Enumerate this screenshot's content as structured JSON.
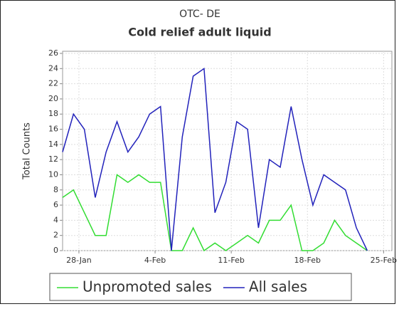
{
  "chart_data": {
    "type": "line",
    "title": "OTC- DE",
    "subtitle": "Cold relief adult liquid",
    "y_label": "Total Counts",
    "x": [
      0,
      1,
      2,
      3,
      4,
      5,
      6,
      7,
      8,
      9,
      10,
      11,
      12,
      13,
      14,
      15,
      16,
      17,
      18,
      19,
      20,
      21,
      22,
      23,
      24,
      25,
      26,
      27,
      28
    ],
    "series": [
      {
        "name": "Unpromoted sales",
        "color": "#33dd33",
        "values": [
          7,
          8,
          5,
          2,
          2,
          10,
          9,
          10,
          9,
          9,
          0,
          0,
          3,
          0,
          1,
          0,
          1,
          2,
          1,
          4,
          4,
          6,
          0,
          0,
          1,
          4,
          2,
          1,
          0
        ]
      },
      {
        "name": "All sales",
        "color": "#2222bb",
        "values": [
          13,
          18,
          16,
          7,
          13,
          17,
          13,
          15,
          18,
          19,
          0,
          15,
          23,
          24,
          5,
          9,
          17,
          16,
          3,
          12,
          11,
          19,
          12,
          6,
          10,
          9,
          8,
          3,
          0
        ]
      }
    ],
    "xlim": [
      0,
      30
    ],
    "xticks": [
      {
        "value": 1.5,
        "label": "28-Jan"
      },
      {
        "value": 8.5,
        "label": "4-Feb"
      },
      {
        "value": 15.5,
        "label": "11-Feb"
      },
      {
        "value": 22.5,
        "label": "18-Feb"
      },
      {
        "value": 29.5,
        "label": "25-Feb"
      }
    ],
    "ylim": [
      0,
      26
    ],
    "yticks": [
      0,
      2,
      4,
      6,
      8,
      10,
      12,
      14,
      16,
      18,
      20,
      22,
      24,
      26
    ],
    "grid": true,
    "legend": "bottom"
  }
}
